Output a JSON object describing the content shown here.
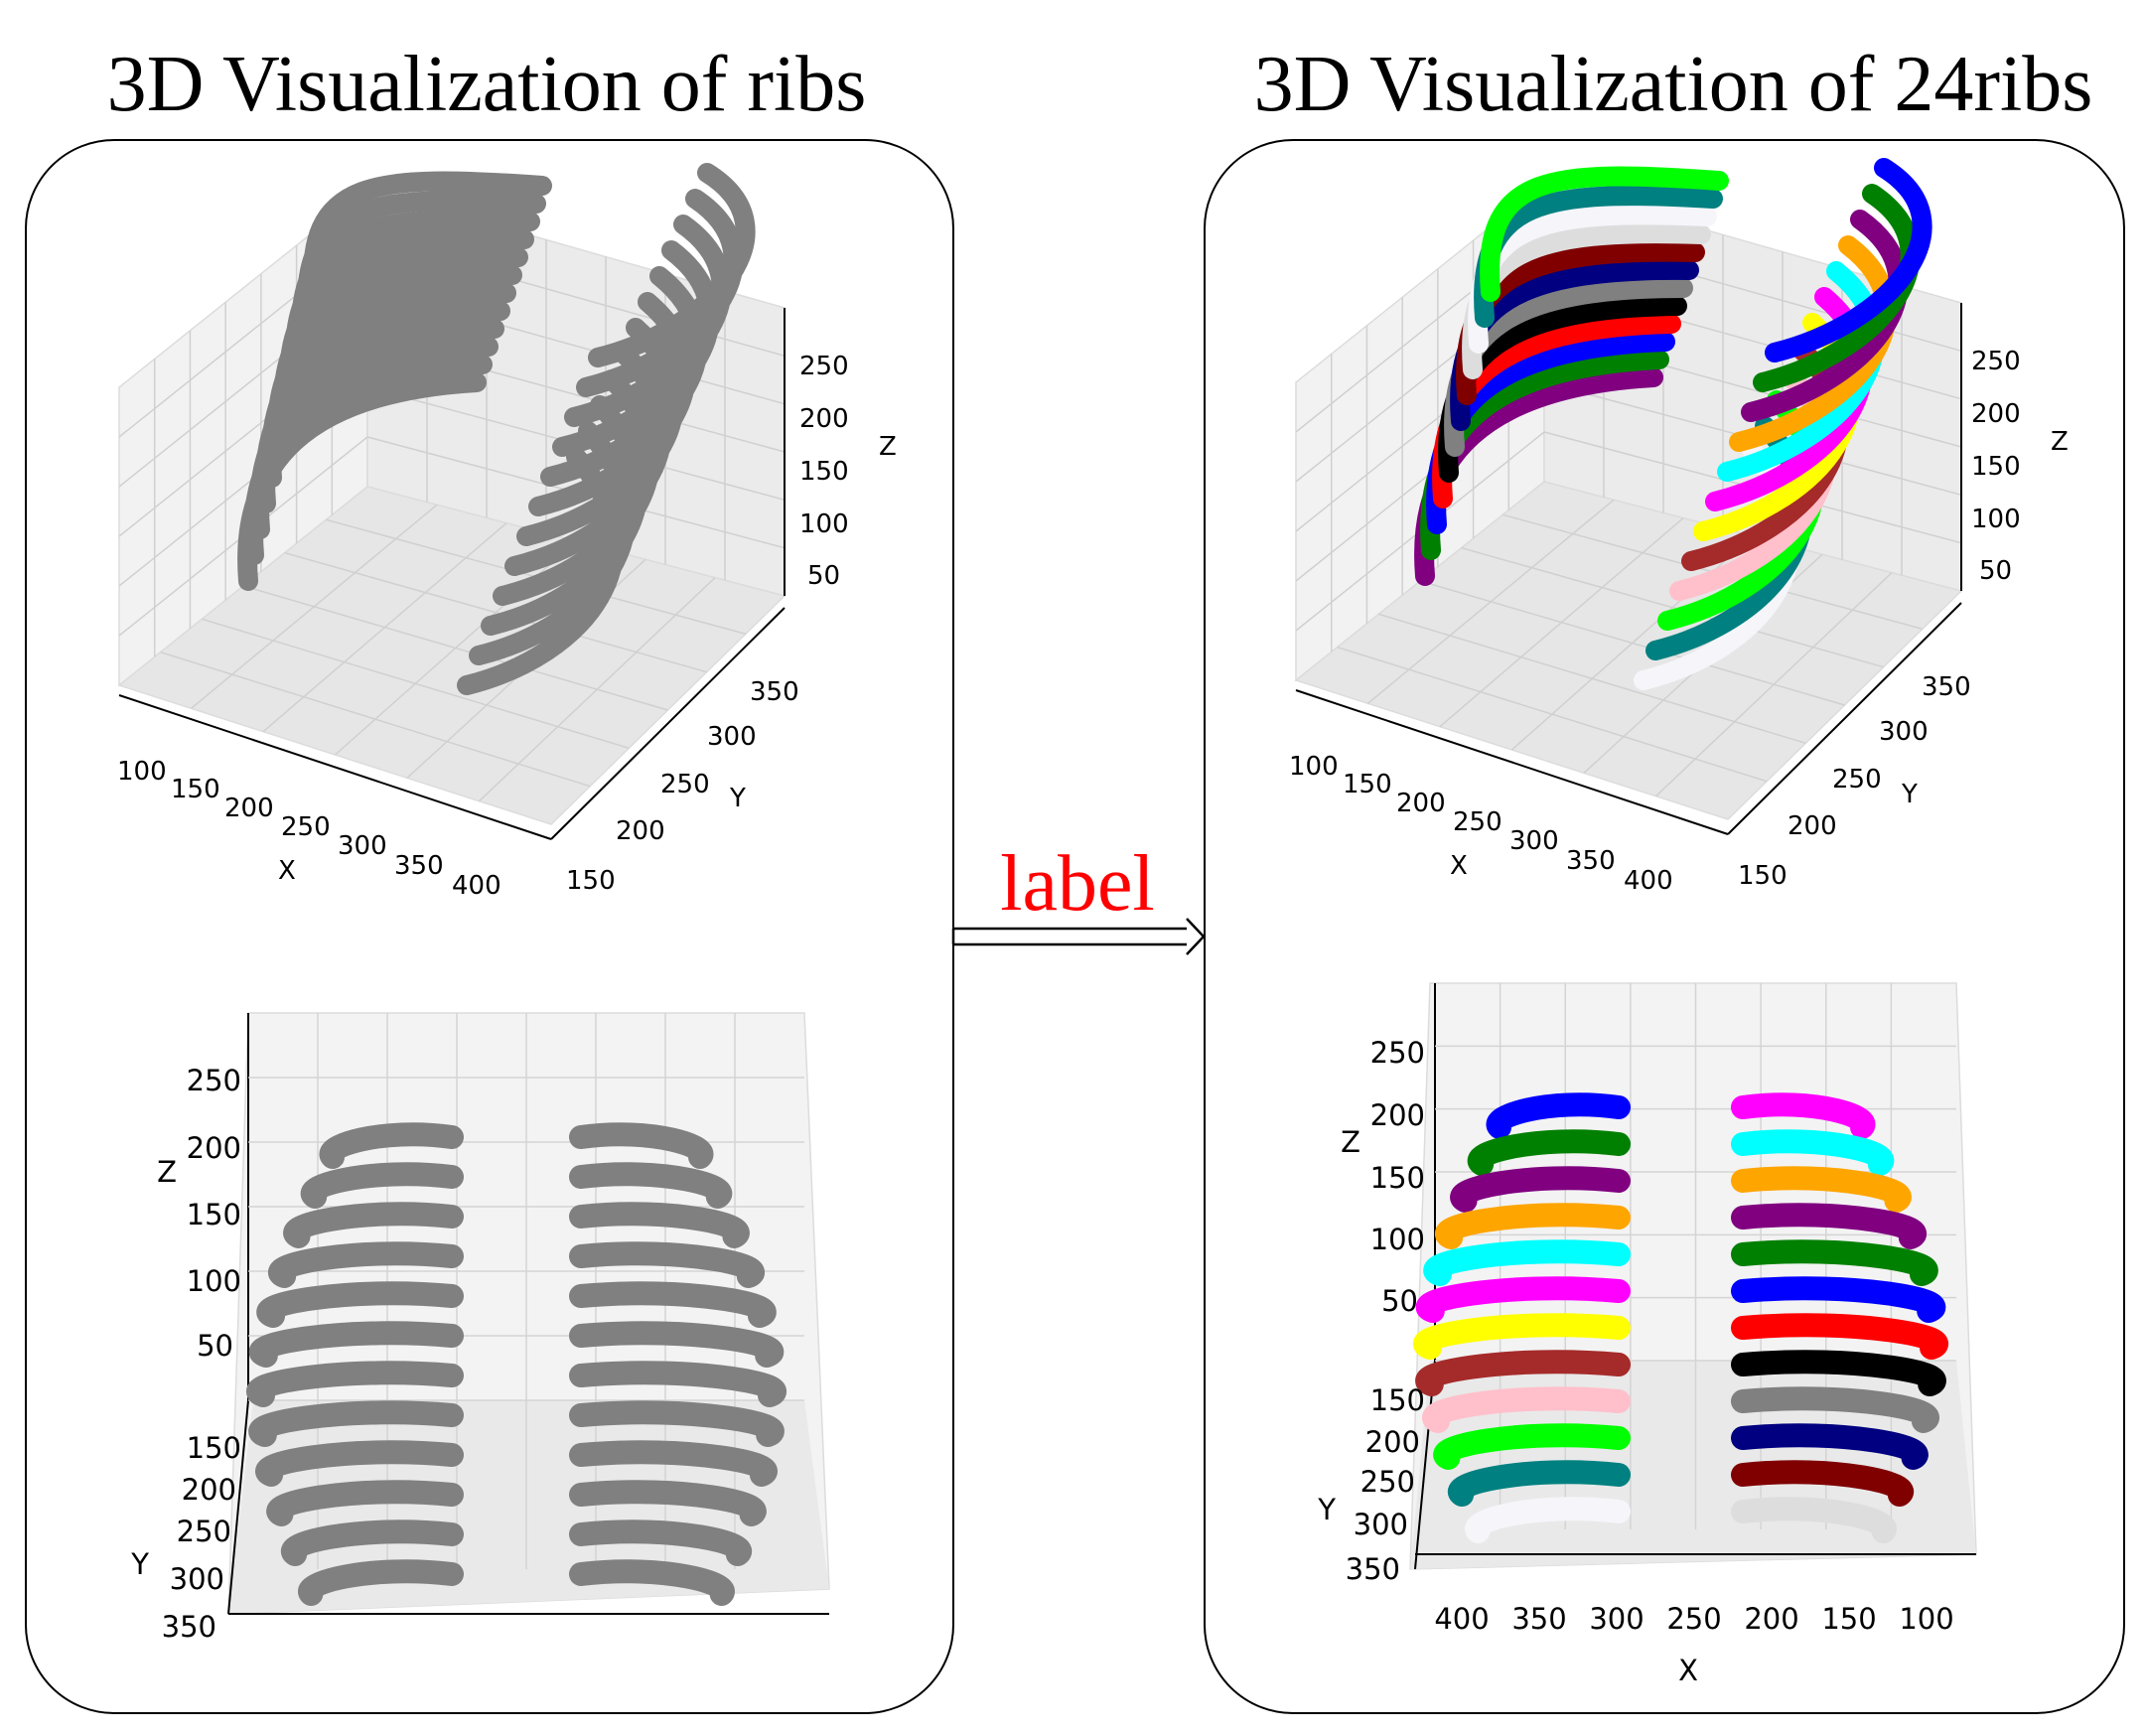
{
  "titles": {
    "left": "3D Visualization of ribs",
    "right": "3D Visualization of 24ribs"
  },
  "arrow": {
    "label": "label"
  },
  "axes": {
    "iso": {
      "x_label": "X",
      "y_label": "Y",
      "z_label": "Z",
      "x_ticks": [
        "100",
        "150",
        "200",
        "250",
        "300",
        "350",
        "400"
      ],
      "y_ticks": [
        "150",
        "200",
        "250",
        "300",
        "350"
      ],
      "z_ticks": [
        "50",
        "100",
        "150",
        "200",
        "250"
      ]
    },
    "front_left": {
      "z_label": "Z",
      "y_label": "Y",
      "z_ticks": [
        "50",
        "100",
        "150",
        "200",
        "250"
      ],
      "y_ticks": [
        "150",
        "200",
        "250",
        "300",
        "350"
      ]
    },
    "front_right": {
      "z_label": "Z",
      "y_label": "Y",
      "x_label": "X",
      "z_ticks": [
        "50",
        "100",
        "150",
        "200",
        "250"
      ],
      "y_ticks": [
        "150",
        "200",
        "250",
        "300",
        "350"
      ],
      "x_ticks": [
        "400",
        "350",
        "300",
        "250",
        "200",
        "150",
        "100"
      ]
    }
  },
  "colors": {
    "unlabeled": "#808080",
    "rib_palette": [
      "#f5f5fa",
      "#008080",
      "#00ff00",
      "#ffc0cb",
      "#a52a2a",
      "#ffff00",
      "#ff00ff",
      "#00ffff",
      "#ffa500",
      "#800080",
      "#008000",
      "#0000ff",
      "#ff0000",
      "#000000",
      "#808080",
      "#000080",
      "#800000",
      "#dddddd"
    ]
  }
}
